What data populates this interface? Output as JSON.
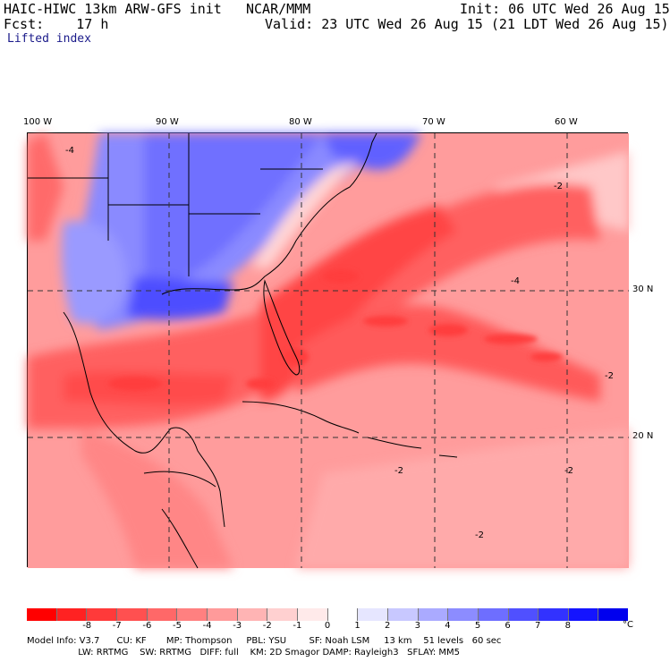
{
  "header": {
    "model_title": "HAIC-HIWC 13km ARW-GFS init",
    "org": "NCAR/MMM",
    "init": "Init: 06 UTC Wed 26 Aug 15",
    "fcst": "Fcst:    17 h",
    "valid": "Valid: 23 UTC Wed 26 Aug 15 (21 LDT Wed 26 Aug 15)",
    "field": "Lifted index"
  },
  "map": {
    "lon_labels": [
      "100 W",
      "90 W",
      "80 W",
      "70 W",
      "60 W"
    ],
    "lat_labels": [
      "30 N",
      "20 N"
    ],
    "contour_labels": [
      "-4",
      "-2",
      "-2",
      "-2",
      "-2",
      "-4",
      "-2"
    ]
  },
  "colorbar": {
    "colors": [
      "#ff0000",
      "#ff2222",
      "#ff3a3a",
      "#ff5050",
      "#ff6868",
      "#ff8080",
      "#ff9a9a",
      "#ffb4b4",
      "#ffd0d0",
      "#ffeaea",
      "#ffffff",
      "#e6e6ff",
      "#c8c8ff",
      "#aaaaff",
      "#8c8cff",
      "#6e6eff",
      "#5050ff",
      "#3232ff",
      "#1414ff",
      "#0000ee"
    ],
    "tick_labels": [
      "-8",
      "-7",
      "-6",
      "-5",
      "-4",
      "-3",
      "-2",
      "-1",
      "0",
      "1",
      "2",
      "3",
      "4",
      "5",
      "6",
      "7",
      "8"
    ],
    "unit": "°C"
  },
  "model_info": {
    "line1": "Model Info: V3.7      CU: KF       MP: Thompson     PBL: YSU        SF: Noah LSM     13 km    51 levels   60 sec",
    "line2": "                  LW: RRTMG    SW: RRTMG   DIFF: full    KM: 2D Smagor DAMP: Rayleigh3   SFLAY: MM5"
  }
}
